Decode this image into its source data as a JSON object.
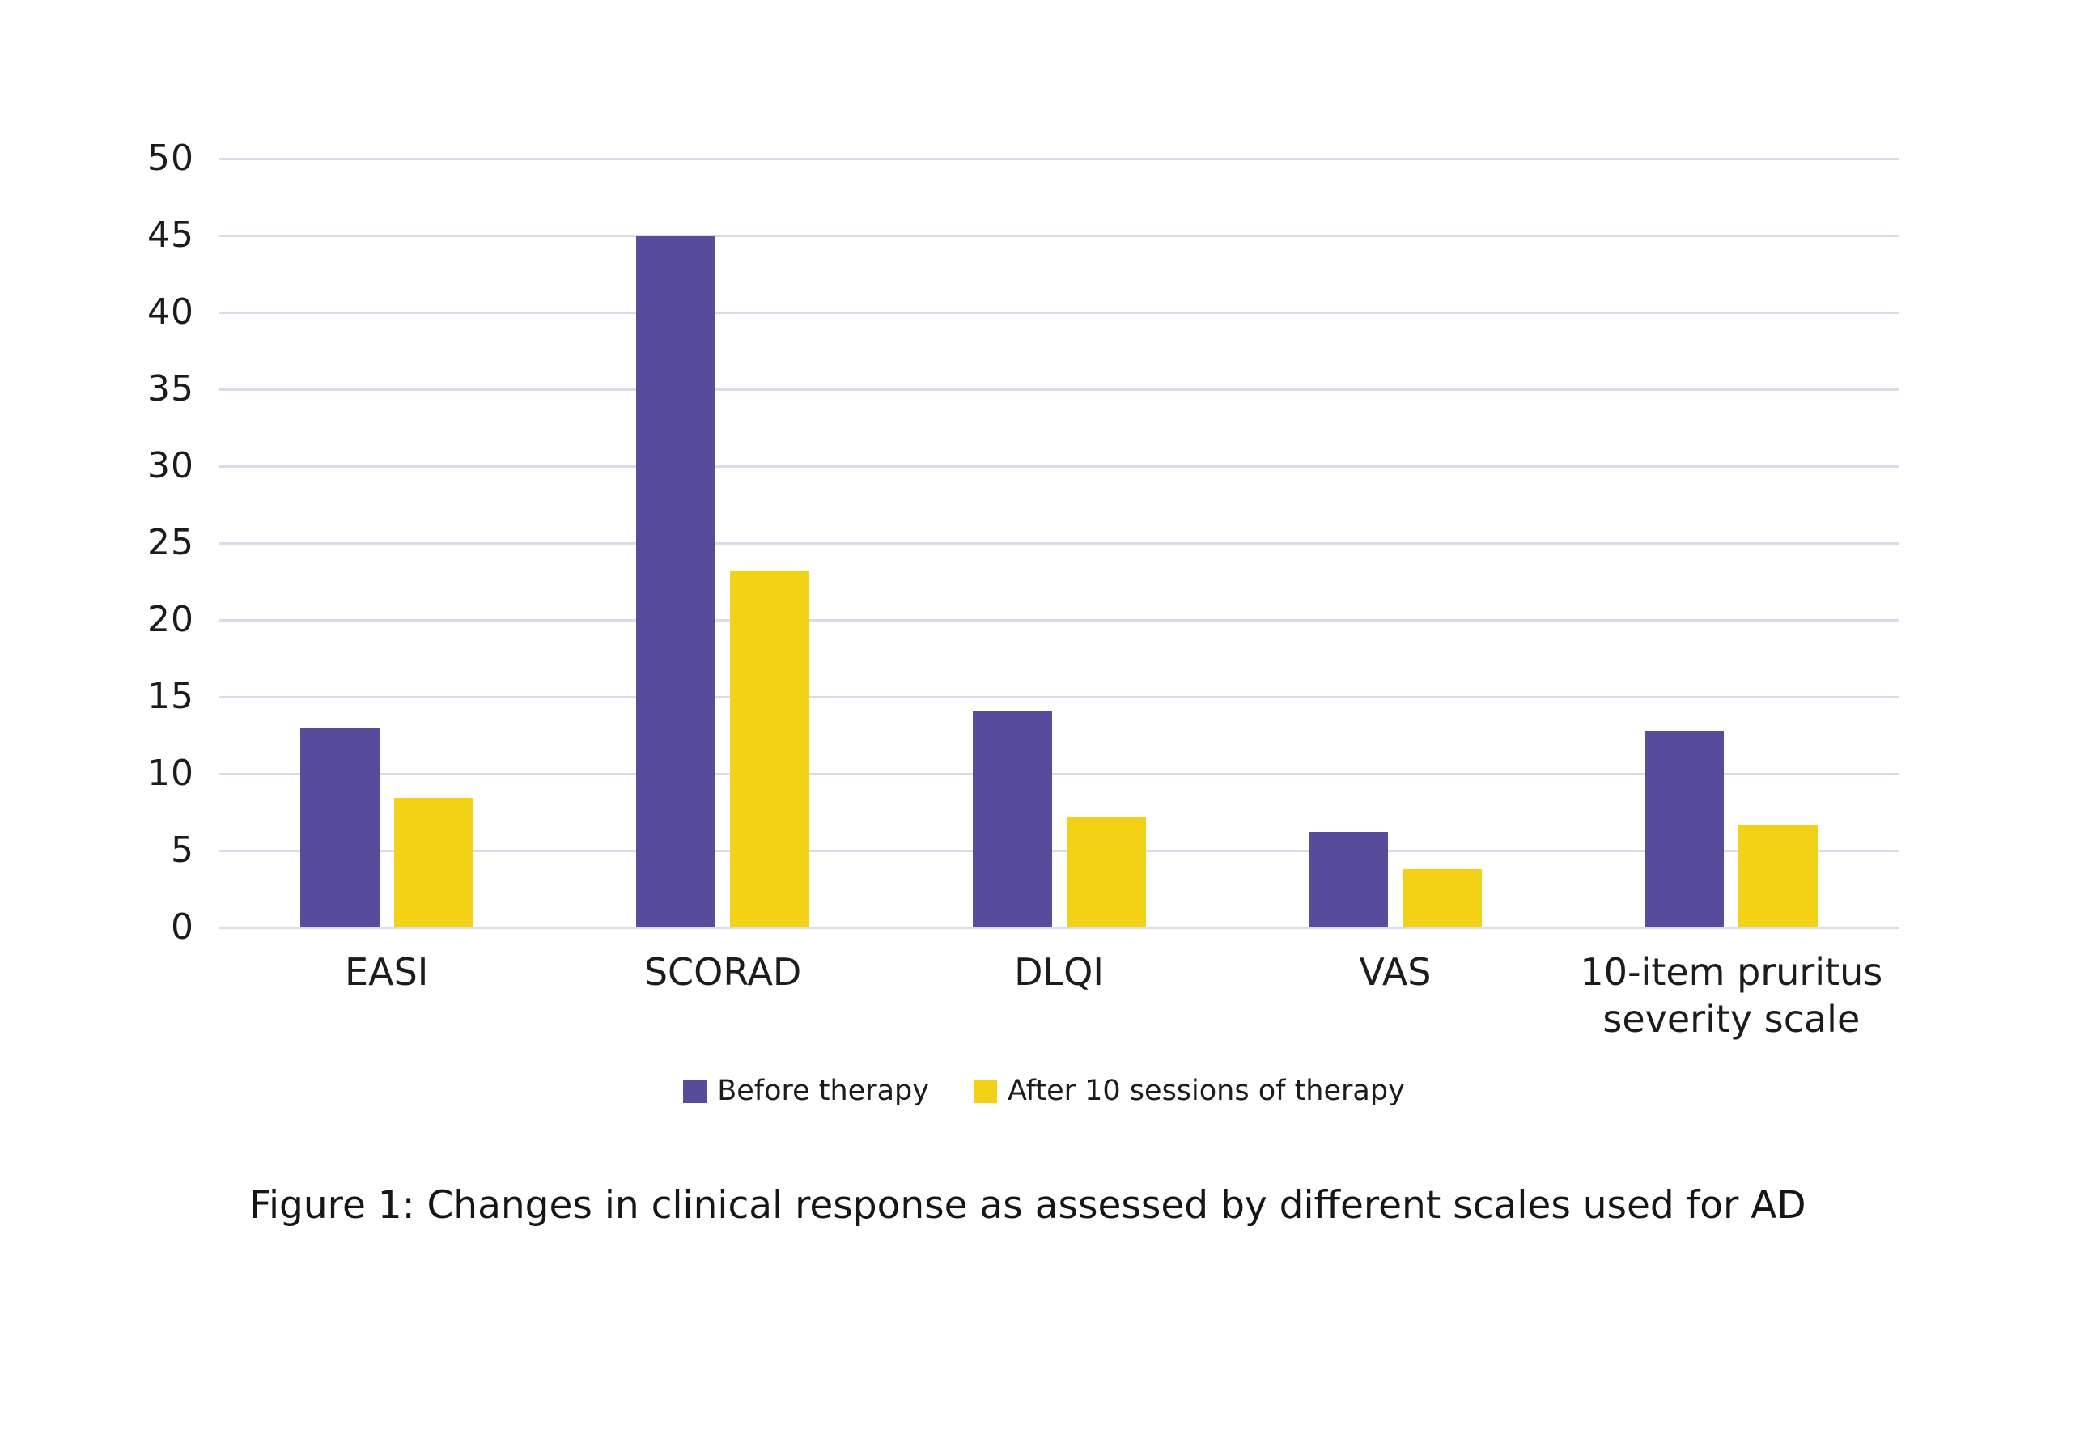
{
  "figure": {
    "caption": "Figure 1: Changes in clinical response as assessed by different scales used for AD"
  },
  "colors": {
    "before_series": "#564c9b",
    "after_series": "#f2d117",
    "gridline": "#dbdbe9",
    "text": "#1c1c1c",
    "background": "#ffffff"
  },
  "chart_data": {
    "type": "bar",
    "categories": [
      "EASI",
      "SCORAD",
      "DLQI",
      "VAS",
      "10-item pruritus severity scale"
    ],
    "series": [
      {
        "name": "Before therapy",
        "color": "#564c9b",
        "values": [
          13,
          45,
          14.1,
          6.2,
          12.8
        ]
      },
      {
        "name": "After 10 sessions of therapy",
        "color": "#f2d117",
        "values": [
          8.4,
          23.2,
          7.2,
          3.8,
          6.7
        ]
      }
    ],
    "title": "",
    "xlabel": "",
    "ylabel": "",
    "ylim": [
      0,
      50
    ],
    "ytick_step": 5,
    "yticks": [
      0,
      5,
      10,
      15,
      20,
      25,
      30,
      35,
      40,
      45,
      50
    ],
    "grid": true,
    "legend_position": "bottom-center"
  }
}
